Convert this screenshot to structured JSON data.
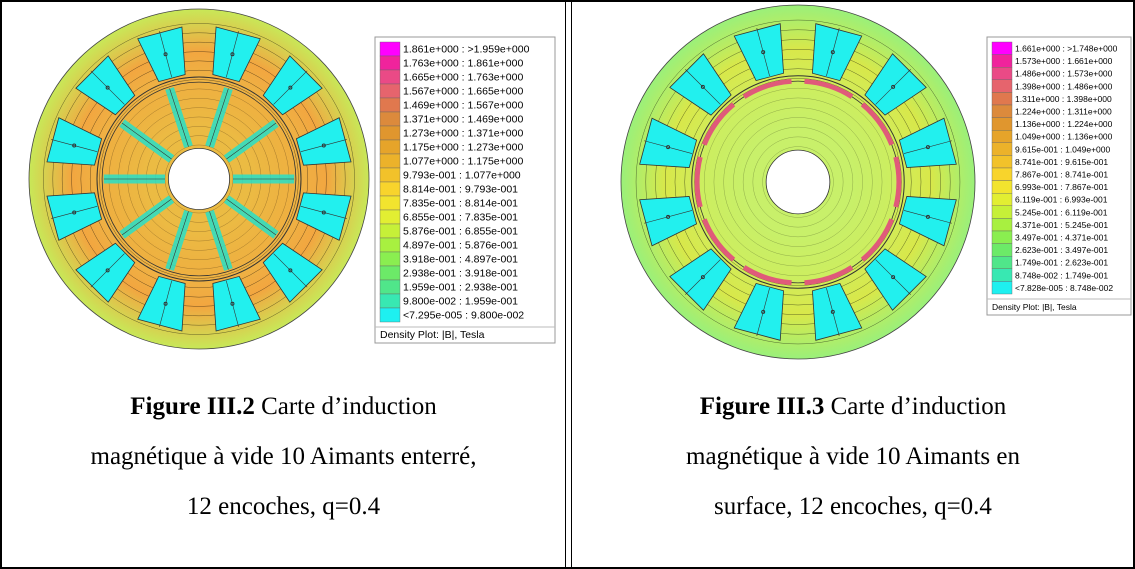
{
  "legend_colors": [
    "#ff00ff",
    "#f0239c",
    "#ea4a86",
    "#e6646d",
    "#e0784e",
    "#dc8a3c",
    "#e0962e",
    "#e6a42a",
    "#ecb22a",
    "#f2c22a",
    "#f8d42c",
    "#f2e42e",
    "#e2ee32",
    "#c6f038",
    "#a8f040",
    "#8aee50",
    "#6cea68",
    "#50e68a",
    "#38e8b2",
    "#1ef0f0"
  ],
  "figures": [
    {
      "legend": {
        "entries": [
          "1.861e+000 : >1.959e+000",
          "1.763e+000 : 1.861e+000",
          "1.665e+000 : 1.763e+000",
          "1.567e+000 : 1.665e+000",
          "1.469e+000 : 1.567e+000",
          "1.371e+000 : 1.469e+000",
          "1.273e+000 : 1.371e+000",
          "1.175e+000 : 1.273e+000",
          "1.077e+000 : 1.175e+000",
          "9.793e-001 : 1.077e+000",
          "8.814e-001 : 9.793e-001",
          "7.835e-001 : 8.814e-001",
          "6.855e-001 : 7.835e-001",
          "5.876e-001 : 6.855e-001",
          "4.897e-001 : 5.876e-001",
          "3.918e-001 : 4.897e-001",
          "2.938e-001 : 3.918e-001",
          "1.959e-001 : 2.938e-001",
          "9.800e-002 : 1.959e-001",
          "<7.295e-005 : 9.800e-002"
        ],
        "title": "Density Plot: |B|, Tesla"
      },
      "caption": {
        "label": "Figure III.2",
        "lines": [
          "Carte d’induction",
          "magnétique à vide 10 Aimants enterré,",
          "12 encoches, q=0.4"
        ]
      }
    },
    {
      "legend": {
        "entries": [
          "1.661e+000 : >1.748e+000",
          "1.573e+000 : 1.661e+000",
          "1.486e+000 : 1.573e+000",
          "1.398e+000 : 1.486e+000",
          "1.311e+000 : 1.398e+000",
          "1.224e+000 : 1.311e+000",
          "1.136e+000 : 1.224e+000",
          "1.049e+000 : 1.136e+000",
          "9.615e-001 : 1.049e+000",
          "8.741e-001 : 9.615e-001",
          "7.867e-001 : 8.741e-001",
          "6.993e-001 : 7.867e-001",
          "6.119e-001 : 6.993e-001",
          "5.245e-001 : 6.119e-001",
          "4.371e-001 : 5.245e-001",
          "3.497e-001 : 4.371e-001",
          "2.623e-001 : 3.497e-001",
          "1.749e-001 : 2.623e-001",
          "8.748e-002 : 1.749e-001",
          "<7.828e-005 : 8.748e-002"
        ],
        "title": "Density Plot: |B|, Tesla"
      },
      "caption": {
        "label": "Figure III.3",
        "lines": [
          "Carte d’induction",
          "magnétique à vide 10 Aimants en",
          "surface, 12 encoches, q=0.4"
        ]
      }
    }
  ]
}
